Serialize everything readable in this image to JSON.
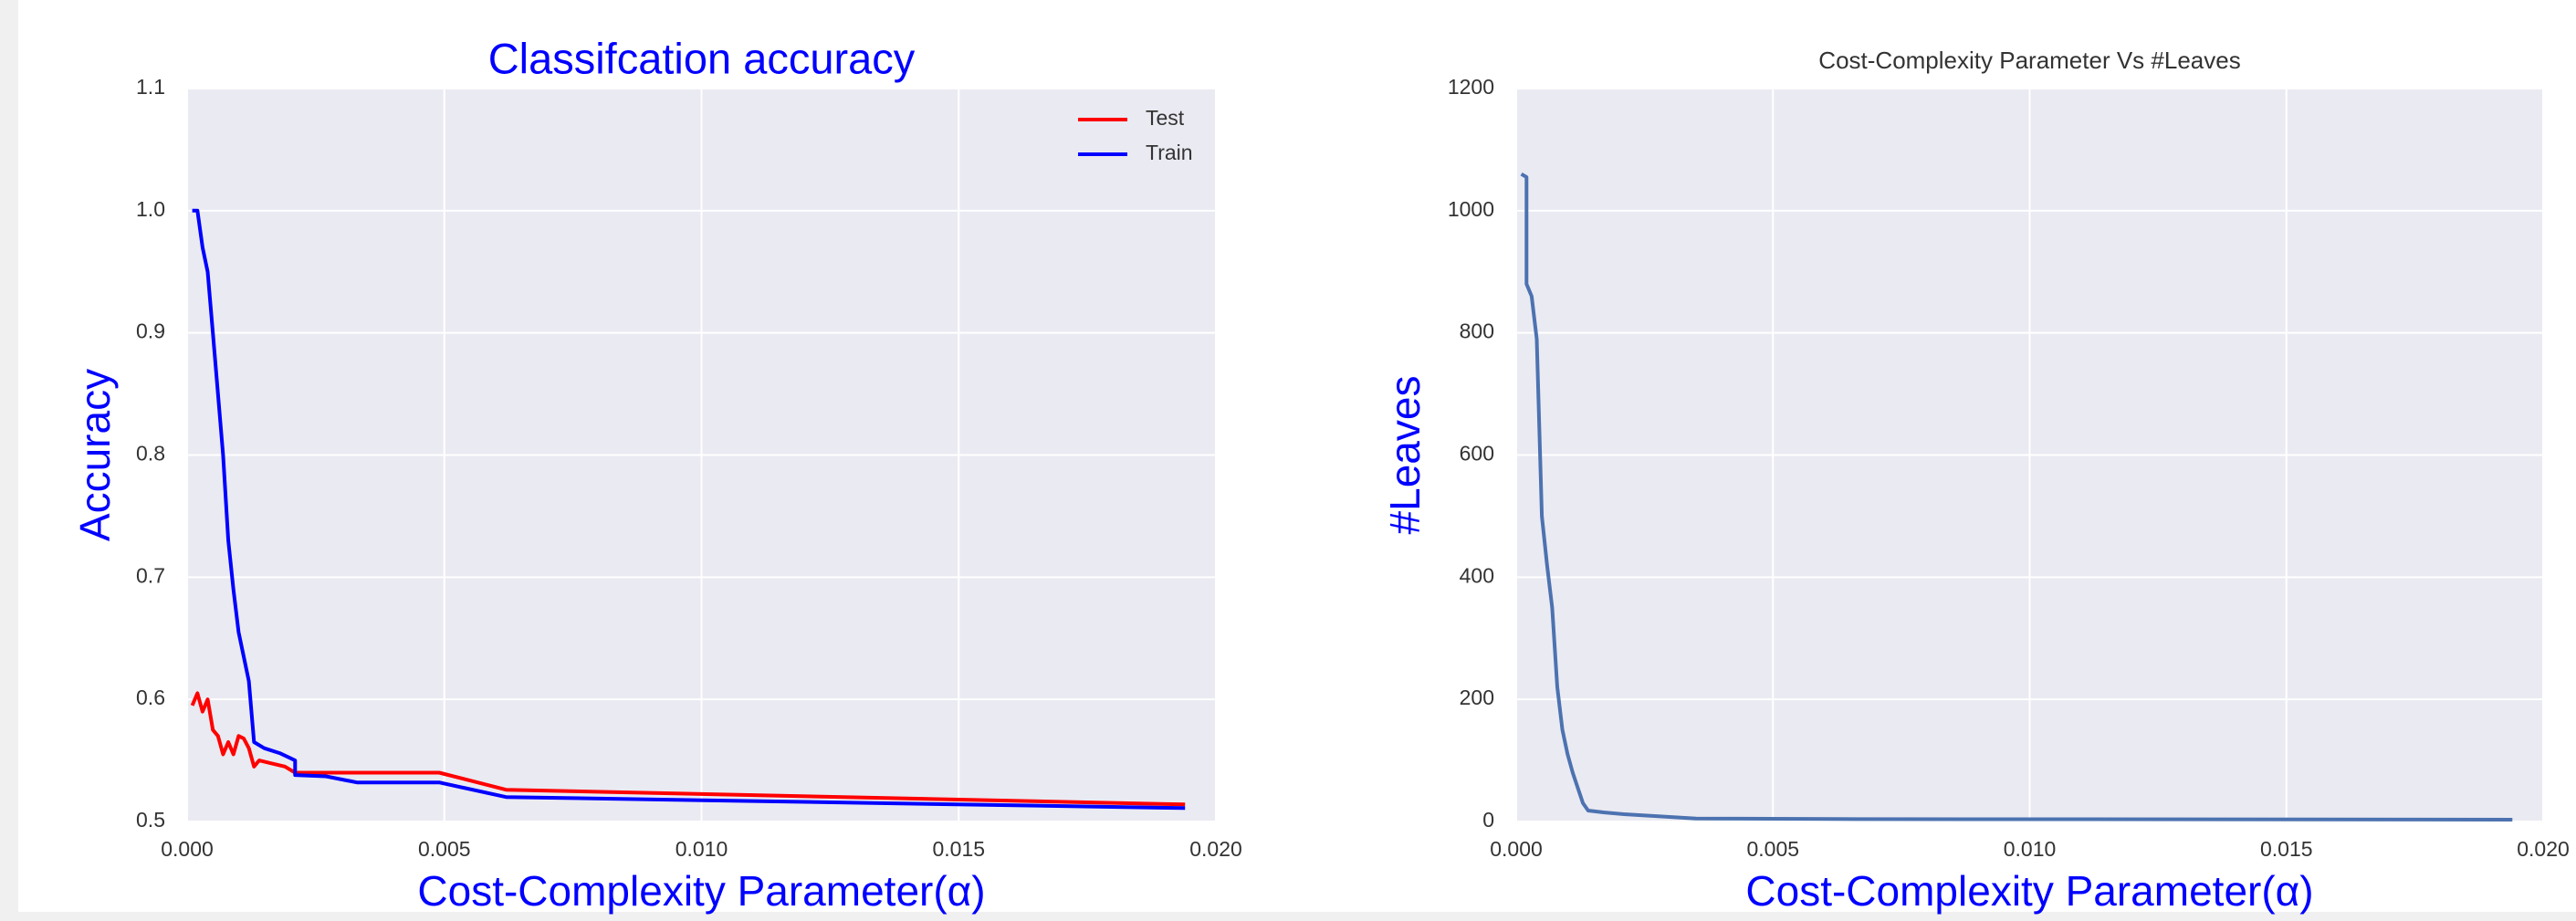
{
  "chart_data": [
    {
      "type": "line",
      "title": "Classifcation accuracy",
      "xlabel": "Cost-Complexity Parameter(α)",
      "ylabel": "Accuracy",
      "xlim": [
        0,
        0.02
      ],
      "ylim": [
        0.5,
        1.1
      ],
      "xticks": [
        {
          "value": 0,
          "label": "0.000"
        },
        {
          "value": 0.005,
          "label": "0.005"
        },
        {
          "value": 0.01,
          "label": "0.010"
        },
        {
          "value": 0.015,
          "label": "0.015"
        },
        {
          "value": 0.02,
          "label": "0.020"
        }
      ],
      "yticks": [
        0.5,
        0.6,
        0.7,
        0.8,
        0.9,
        {
          "value": 1.0,
          "label": "1.0"
        },
        1.1
      ],
      "grid": true,
      "legend": "upper right",
      "series": [
        {
          "name": "Test",
          "color": "#ff0000",
          "x": [
            0.0001,
            0.0002,
            0.0003,
            0.0004,
            0.0005,
            0.0006,
            0.0007,
            0.0008,
            0.0009,
            0.001,
            0.0011,
            0.0012,
            0.0013,
            0.0014,
            0.0016,
            0.0019,
            0.0021,
            0.0033,
            0.0049,
            0.0062,
            0.0194
          ],
          "values": [
            0.595,
            0.605,
            0.59,
            0.6,
            0.575,
            0.57,
            0.555,
            0.565,
            0.555,
            0.57,
            0.568,
            0.56,
            0.545,
            0.55,
            0.548,
            0.545,
            0.54,
            0.54,
            0.54,
            0.526,
            0.514
          ]
        },
        {
          "name": "Train",
          "color": "#0000ff",
          "x": [
            0.0001,
            0.0002,
            0.0003,
            0.0004,
            0.0005,
            0.0006,
            0.0007,
            0.0008,
            0.0009,
            0.001,
            0.0011,
            0.0012,
            0.0013,
            0.0015,
            0.0018,
            0.0021,
            0.0021,
            0.0027,
            0.0033,
            0.0049,
            0.0062,
            0.0194
          ],
          "values": [
            1.0,
            1.0,
            0.97,
            0.95,
            0.9,
            0.85,
            0.8,
            0.73,
            0.69,
            0.655,
            0.635,
            0.615,
            0.565,
            0.56,
            0.556,
            0.55,
            0.538,
            0.537,
            0.532,
            0.532,
            0.52,
            0.511
          ]
        }
      ]
    },
    {
      "type": "line",
      "title": "Cost-Complexity Parameter Vs #Leaves",
      "xlabel": "Cost-Complexity Parameter(α)",
      "ylabel": "#Leaves",
      "xlim": [
        0,
        0.02
      ],
      "ylim": [
        0,
        1200
      ],
      "xticks": [
        {
          "value": 0,
          "label": "0.000"
        },
        {
          "value": 0.005,
          "label": "0.005"
        },
        {
          "value": 0.01,
          "label": "0.010"
        },
        {
          "value": 0.015,
          "label": "0.015"
        },
        {
          "value": 0.02,
          "label": "0.020"
        }
      ],
      "yticks": [
        0,
        200,
        400,
        600,
        800,
        1000,
        1200
      ],
      "grid": true,
      "series": [
        {
          "color": "#4c72b0",
          "x": [
            0.0001,
            0.0002,
            0.0002,
            0.0003,
            0.0004,
            0.0005,
            0.0006,
            0.0007,
            0.0008,
            0.0009,
            0.001,
            0.0011,
            0.0012,
            0.0013,
            0.0014,
            0.0017,
            0.0021,
            0.0035,
            0.0062,
            0.0194
          ],
          "values": [
            1060,
            1055,
            880,
            860,
            790,
            500,
            420,
            350,
            220,
            150,
            110,
            80,
            55,
            30,
            18,
            15,
            12,
            5,
            4,
            3
          ]
        }
      ]
    }
  ]
}
